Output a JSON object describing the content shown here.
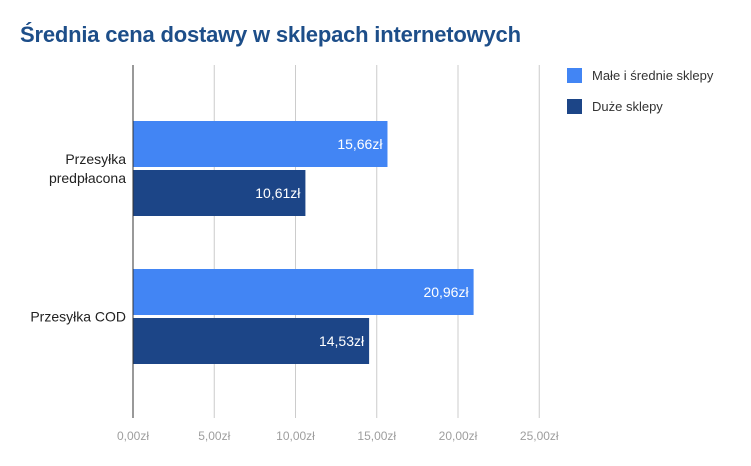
{
  "chart_data": {
    "type": "bar",
    "orientation": "horizontal",
    "title": "Średnia cena dostawy w sklepach internetowych",
    "categories": [
      "Przesyłka\npredpłacona",
      "Przesyłka COD"
    ],
    "series": [
      {
        "name": "Małe i średnie sklepy",
        "values": [
          15.66,
          20.96
        ],
        "labels": [
          "15,66zł",
          "20,96zł"
        ],
        "color": "#4285f4"
      },
      {
        "name": "Duże sklepy",
        "values": [
          10.61,
          14.53
        ],
        "labels": [
          "10,61zł",
          "14,53zł"
        ],
        "color": "#1c4587"
      }
    ],
    "xlim": [
      0,
      25
    ],
    "xticks": [
      0,
      5,
      10,
      15,
      20,
      25
    ],
    "xtick_labels": [
      "0,00zł",
      "5,00zł",
      "10,00zł",
      "15,00zł",
      "20,00zł",
      "25,00zł"
    ],
    "grid": true,
    "legend_position": "right"
  }
}
